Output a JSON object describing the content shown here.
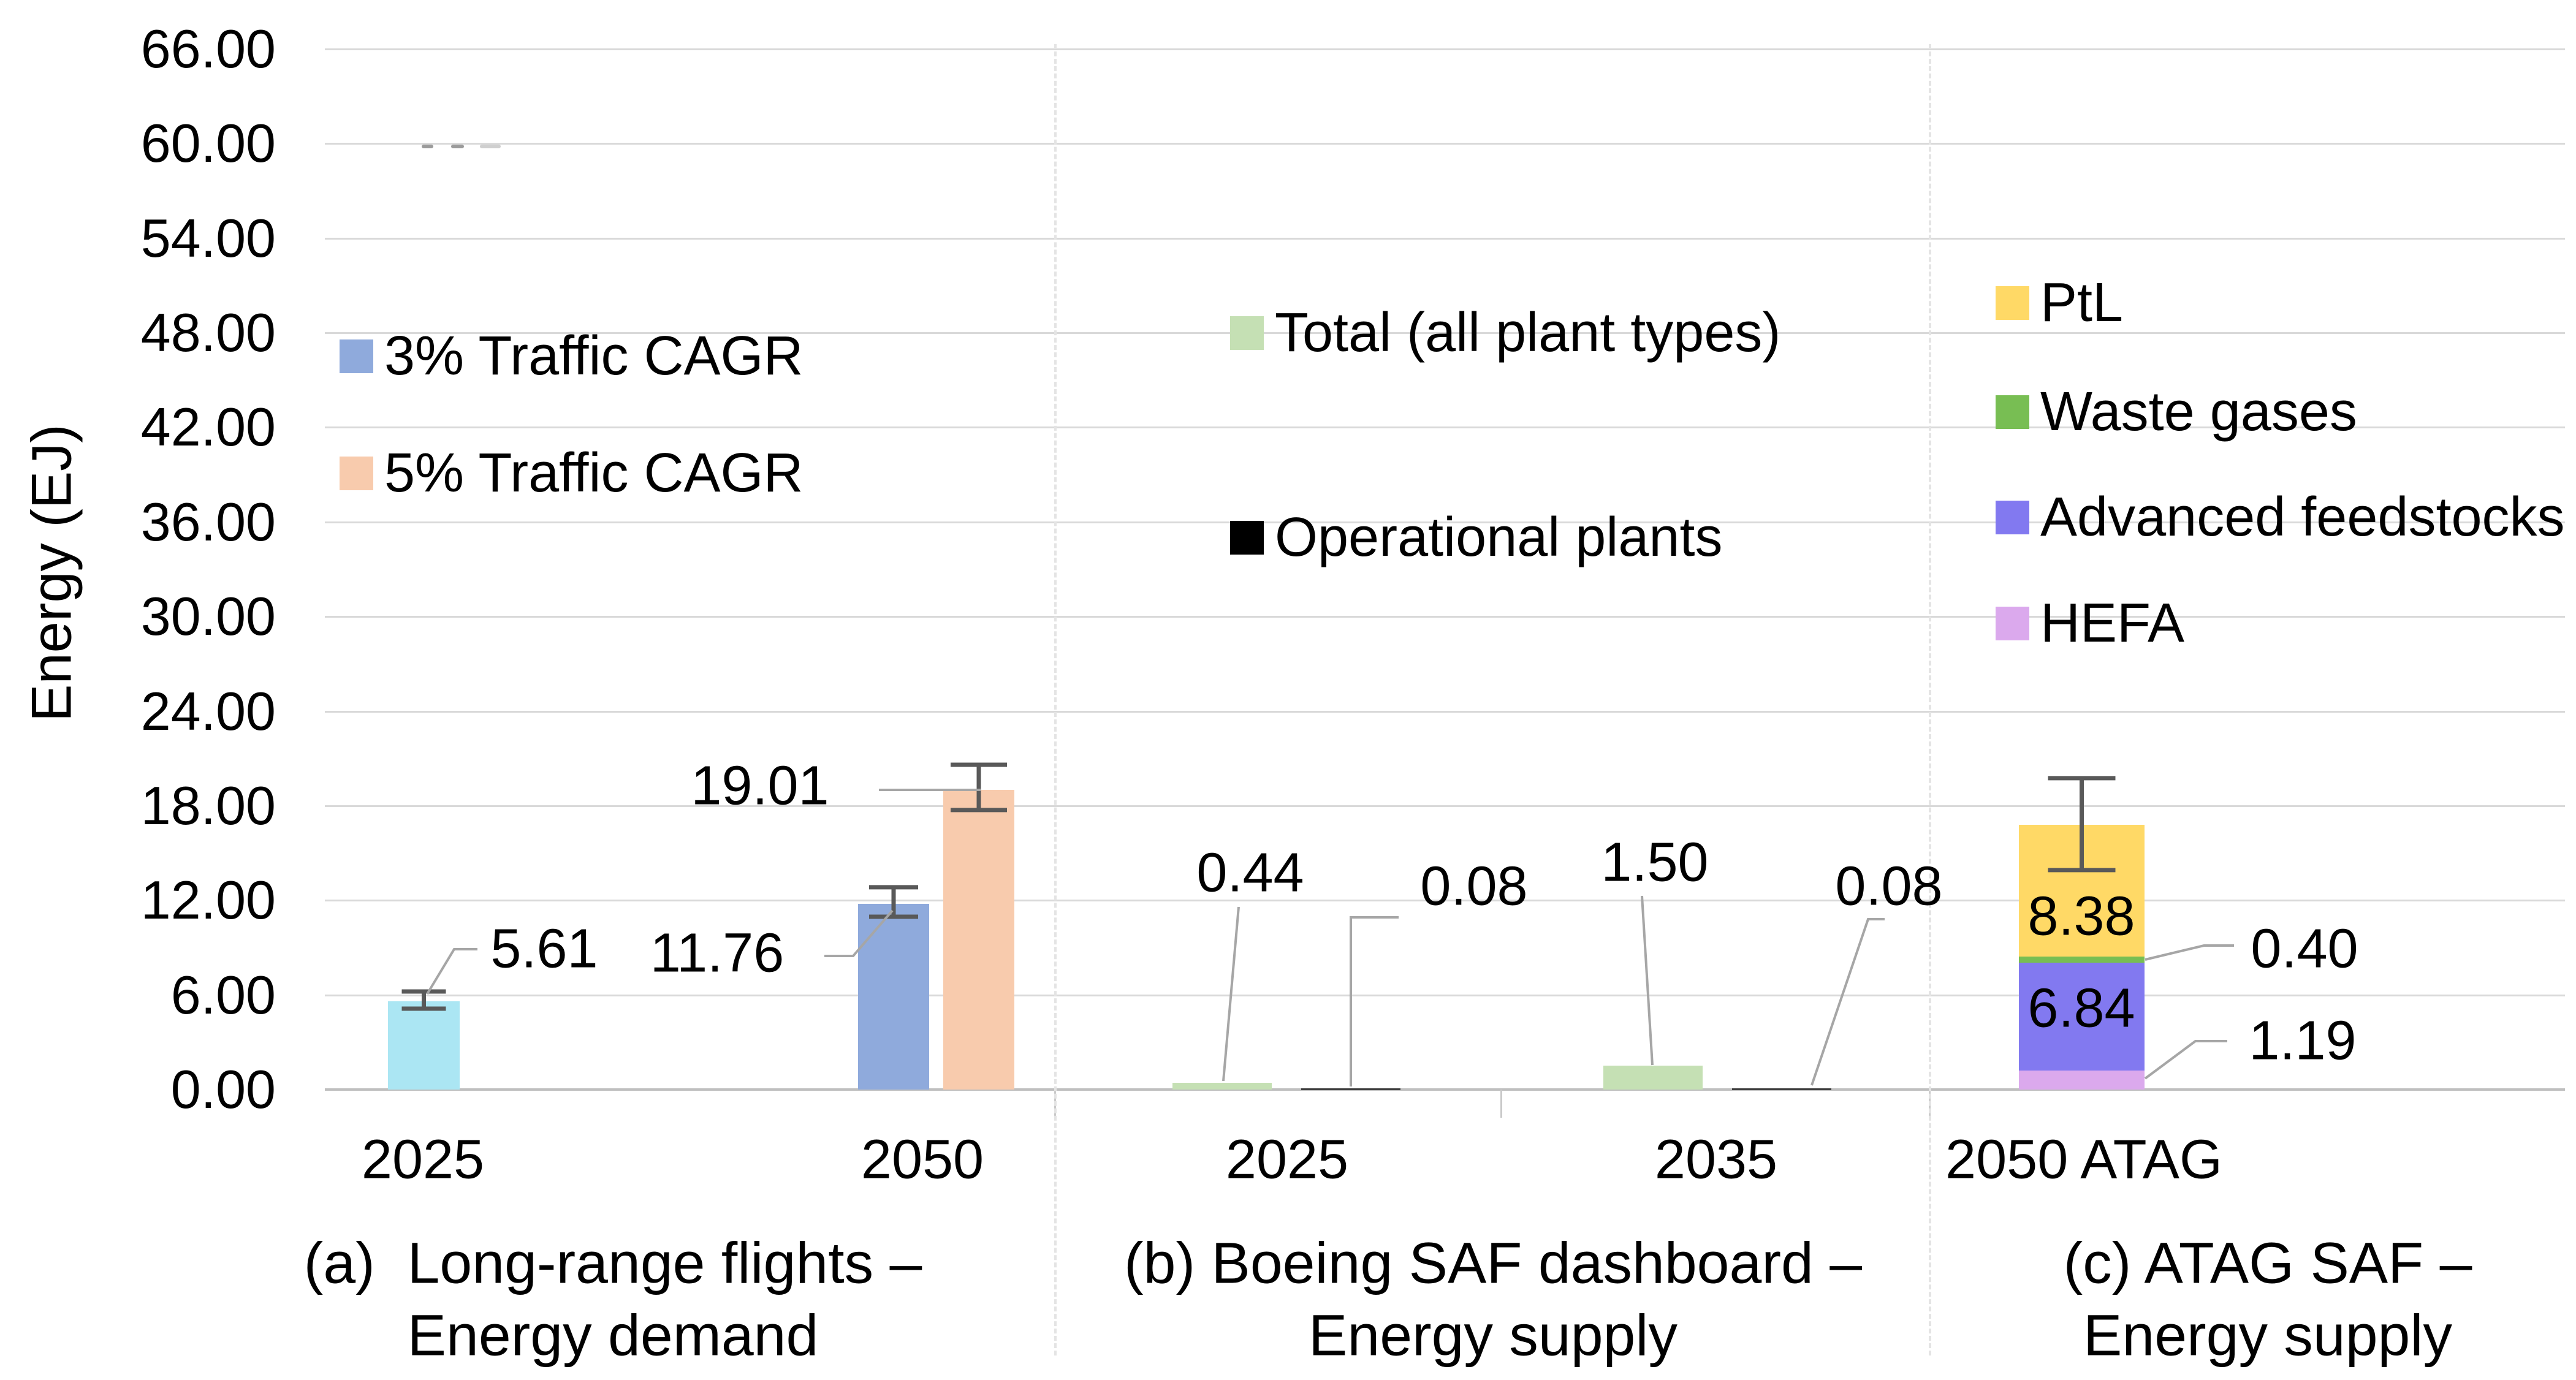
{
  "figure": {
    "y_axis_title": "Energy (EJ)",
    "y_tick_labels": [
      "66.00",
      "60.00",
      "54.00",
      "48.00",
      "42.00",
      "36.00",
      "30.00",
      "24.00",
      "18.00",
      "12.00",
      "6.00",
      "0.00"
    ]
  },
  "chart_data": {
    "type": "bar",
    "title": "",
    "ylabel": "Energy (EJ)",
    "ylim": [
      0,
      66
    ],
    "ytick_step": 6,
    "ytick_format": "0.00",
    "grid": true,
    "legend_position": "inside-top-of-each-panel",
    "panels": [
      {
        "key": "a",
        "caption": [
          "(a)  Long-range flights –",
          "Energy demand"
        ],
        "legend": [
          {
            "label": "3% Traffic CAGR",
            "color": "#8FAADC"
          },
          {
            "label": "5% Traffic CAGR",
            "color": "#F8CBAD"
          }
        ],
        "categories": [
          "2025",
          "2050"
        ],
        "bars": [
          {
            "category": "2025",
            "series": "Energy demand",
            "value": 5.61,
            "label": "5.61",
            "color": "#ABE6F3",
            "error_low": 5.13,
            "error_high": 6.22
          },
          {
            "category": "2050",
            "series": "3% Traffic CAGR",
            "value": 11.76,
            "label": "11.76",
            "color": "#8FAADC",
            "error_low": 10.96,
            "error_high": 12.83
          },
          {
            "category": "2050",
            "series": "5% Traffic CAGR",
            "value": 19.01,
            "label": "19.01",
            "color": "#F8CBAD",
            "error_low": 17.73,
            "error_high": 20.6
          }
        ]
      },
      {
        "key": "b",
        "caption": [
          "(b) Boeing SAF dashboard –",
          "Energy supply"
        ],
        "legend": [
          {
            "label": "Total (all plant types)",
            "color": "#C5E0B4"
          },
          {
            "label": "Operational plants",
            "color": "#000000"
          }
        ],
        "categories": [
          "2025",
          "2035"
        ],
        "bars": [
          {
            "category": "2025",
            "series": "Total (all plant types)",
            "value": 0.44,
            "label": "0.44",
            "color": "#C5E0B4"
          },
          {
            "category": "2025",
            "series": "Operational plants",
            "value": 0.08,
            "label": "0.08",
            "color": "#3F3F3F"
          },
          {
            "category": "2035",
            "series": "Total (all plant types)",
            "value": 1.5,
            "label": "1.50",
            "color": "#C5E0B4"
          },
          {
            "category": "2035",
            "series": "Operational plants",
            "value": 0.08,
            "label": "0.08",
            "color": "#3F3F3F"
          }
        ]
      },
      {
        "key": "c",
        "caption": [
          "(c) ATAG SAF –",
          "Energy supply"
        ],
        "legend": [
          {
            "label": "PtL",
            "color": "#FFD966"
          },
          {
            "label": "Waste gases",
            "color": "#78BE53"
          },
          {
            "label": "Advanced feedstocks",
            "color": "#8279F0"
          },
          {
            "label": "HEFA",
            "color": "#DBA9ED"
          }
        ],
        "categories": [
          "2050 ATAG"
        ],
        "stack": [
          {
            "series": "HEFA",
            "value": 1.19,
            "label": "1.19",
            "color": "#DBA9ED",
            "label_outside": true
          },
          {
            "series": "Advanced feedstocks",
            "value": 6.84,
            "label": "6.84",
            "color": "#8279F0",
            "label_outside": false
          },
          {
            "series": "Waste gases",
            "value": 0.4,
            "label": "0.40",
            "color": "#78BE53",
            "label_outside": true
          },
          {
            "series": "PtL",
            "value": 8.38,
            "label": "8.38",
            "color": "#FFD966",
            "label_outside": false
          }
        ],
        "stack_total": 16.81,
        "error_low": 13.92,
        "error_high": 19.75
      }
    ]
  },
  "colors": {
    "gridline": "#D9D9D9",
    "axis_line": "#BFBFBF",
    "separator": "#E4E4E4",
    "error_bar": "#595959",
    "leader_line": "#A6A6A6",
    "text": "#000000"
  },
  "artifacts": {
    "ghost_marks_note": "faint gray残remnant dashes just below the 60.00 gridline",
    "marks": [
      {
        "x": 688,
        "w": 19,
        "color": "#9B9B9B"
      },
      {
        "x": 736,
        "w": 21,
        "color": "#9B9B9B"
      },
      {
        "x": 783,
        "w": 34,
        "color": "#CFCFCF"
      }
    ]
  }
}
